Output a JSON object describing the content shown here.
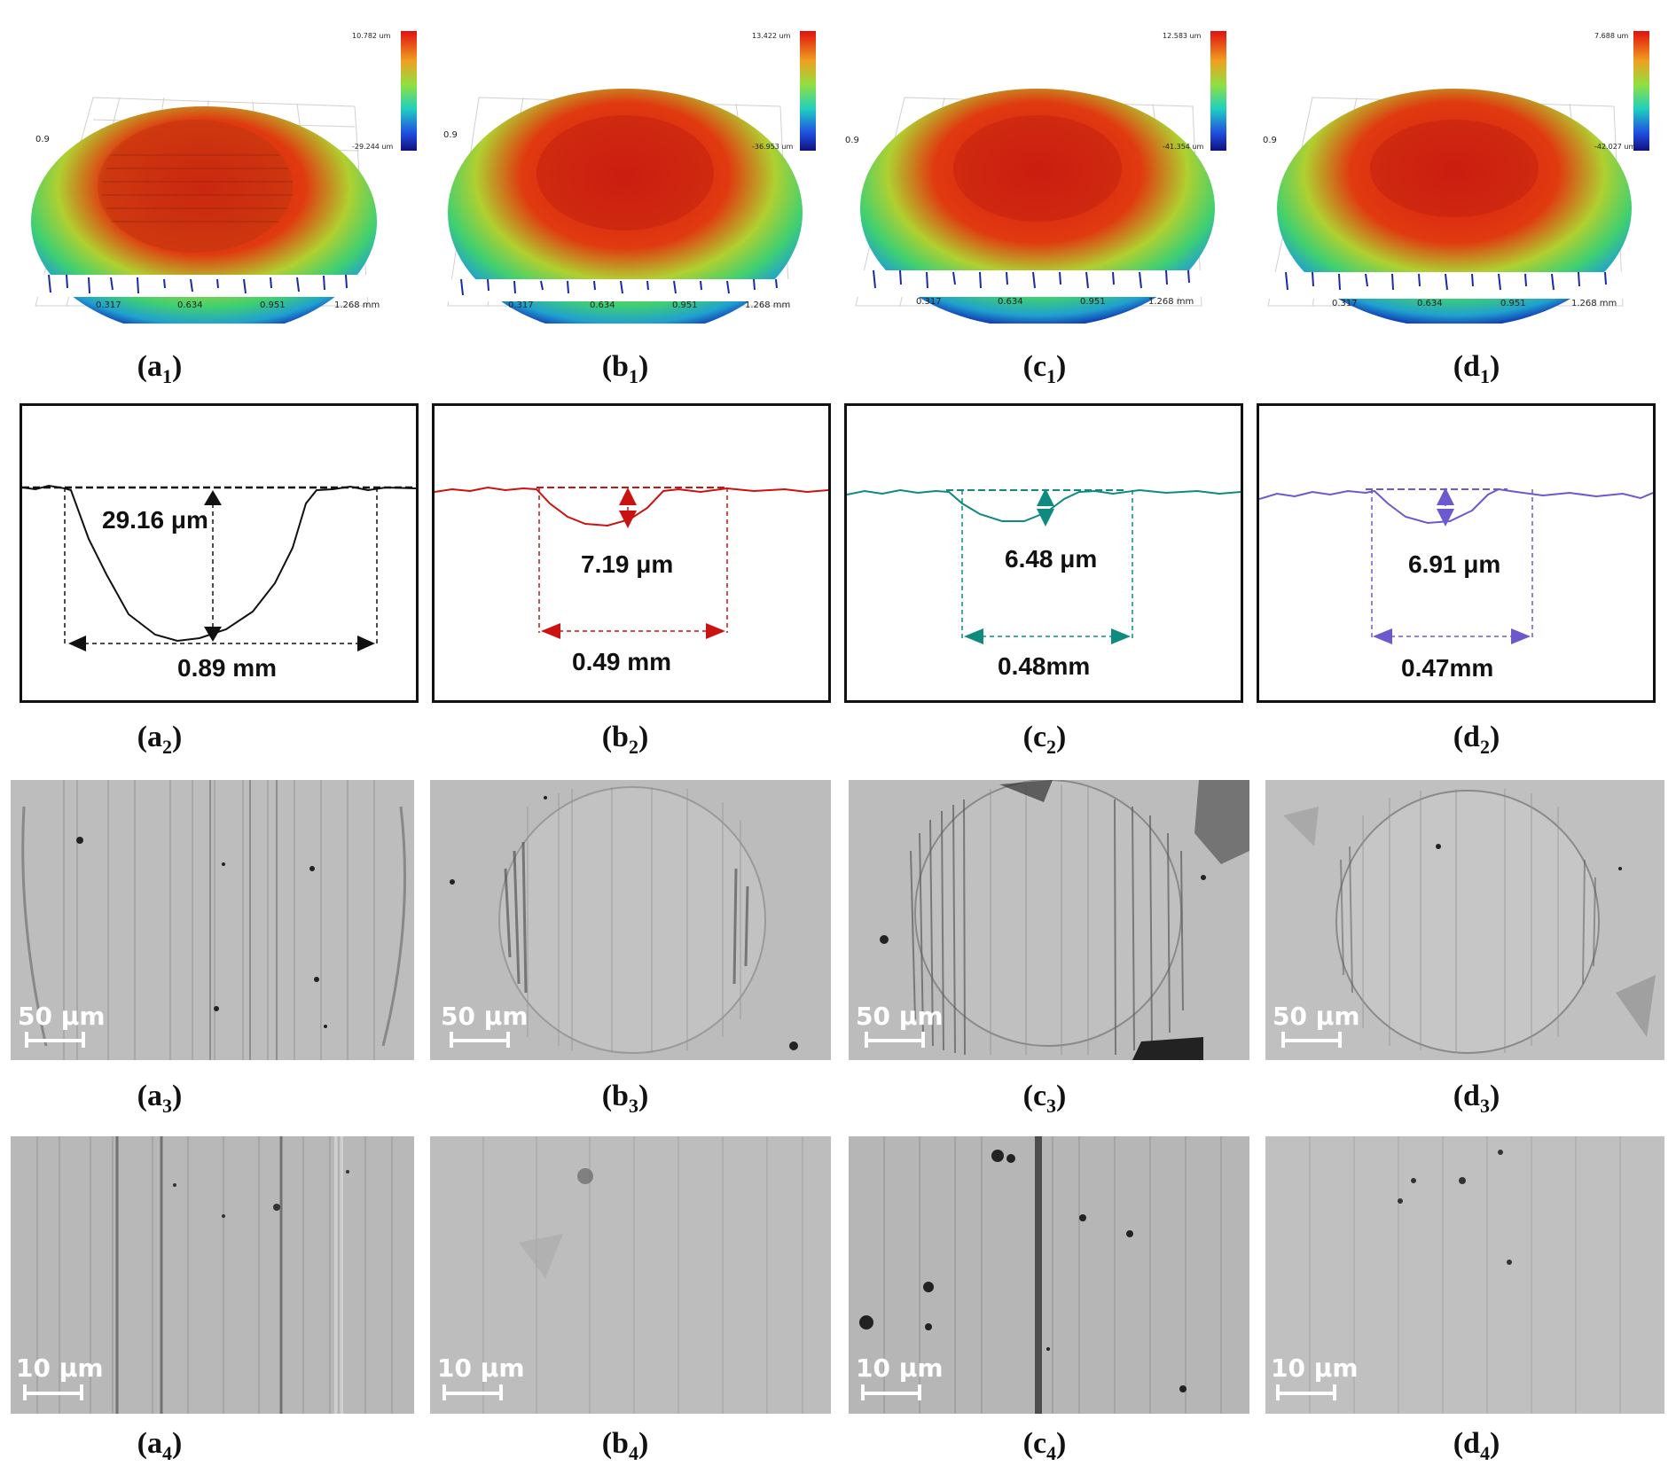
{
  "topography": [
    {
      "id": "a1",
      "caption_letter": "a",
      "caption_sub": "1",
      "cb_max": "10.782 um",
      "cb_min": "-29.244 um",
      "y_tick": "0.9",
      "x_ticks": [
        "0.317",
        "0.634",
        "0.951",
        "1.268 mm"
      ]
    },
    {
      "id": "b1",
      "caption_letter": "b",
      "caption_sub": "1",
      "cb_max": "13.422 um",
      "cb_min": "-36.953 um",
      "y_tick": "0.9",
      "x_ticks": [
        "0.317",
        "0.634",
        "0.951",
        "1.268 mm"
      ]
    },
    {
      "id": "c1",
      "caption_letter": "c",
      "caption_sub": "1",
      "cb_max": "12.583 um",
      "cb_min": "-41.354 um",
      "y_tick": "0.9",
      "x_ticks": [
        "0.317",
        "0.634",
        "0.951",
        "1.268 mm"
      ]
    },
    {
      "id": "d1",
      "caption_letter": "d",
      "caption_sub": "1",
      "cb_max": "7.688 um",
      "cb_min": "-42.027 um",
      "y_tick": "0.9",
      "x_ticks": [
        "0.317",
        "0.634",
        "0.951",
        "1.268 mm"
      ]
    }
  ],
  "profiles": [
    {
      "id": "a2",
      "caption_letter": "a",
      "caption_sub": "2",
      "color": "#111111",
      "depth": "29.16 μm",
      "width": "0.89 mm",
      "depth_um": 29.16,
      "width_mm": 0.89
    },
    {
      "id": "b2",
      "caption_letter": "b",
      "caption_sub": "2",
      "color": "#cc1111",
      "depth": "7.19 μm",
      "width": "0.49 mm",
      "depth_um": 7.19,
      "width_mm": 0.49
    },
    {
      "id": "c2",
      "caption_letter": "c",
      "caption_sub": "2",
      "color": "#0e8a7e",
      "depth": "6.48 μm",
      "width": "0.48mm",
      "depth_um": 6.48,
      "width_mm": 0.48
    },
    {
      "id": "d2",
      "caption_letter": "d",
      "caption_sub": "2",
      "color": "#6a5acd",
      "depth": "6.91 μm",
      "width": "0.47mm",
      "depth_um": 6.91,
      "width_mm": 0.47
    }
  ],
  "micrographs_low": [
    {
      "id": "a3",
      "caption_letter": "a",
      "caption_sub": "3",
      "scale": "50 μm"
    },
    {
      "id": "b3",
      "caption_letter": "b",
      "caption_sub": "3",
      "scale": "50 μm"
    },
    {
      "id": "c3",
      "caption_letter": "c",
      "caption_sub": "3",
      "scale": "50 μm"
    },
    {
      "id": "d3",
      "caption_letter": "d",
      "caption_sub": "3",
      "scale": "50 μm"
    }
  ],
  "micrographs_high": [
    {
      "id": "a4",
      "caption_letter": "a",
      "caption_sub": "4",
      "scale": "10 μm"
    },
    {
      "id": "b4",
      "caption_letter": "b",
      "caption_sub": "4",
      "scale": "10 μm"
    },
    {
      "id": "c4",
      "caption_letter": "c",
      "caption_sub": "4",
      "scale": "10 μm"
    },
    {
      "id": "d4",
      "caption_letter": "d",
      "caption_sub": "4",
      "scale": "10 μm"
    }
  ]
}
